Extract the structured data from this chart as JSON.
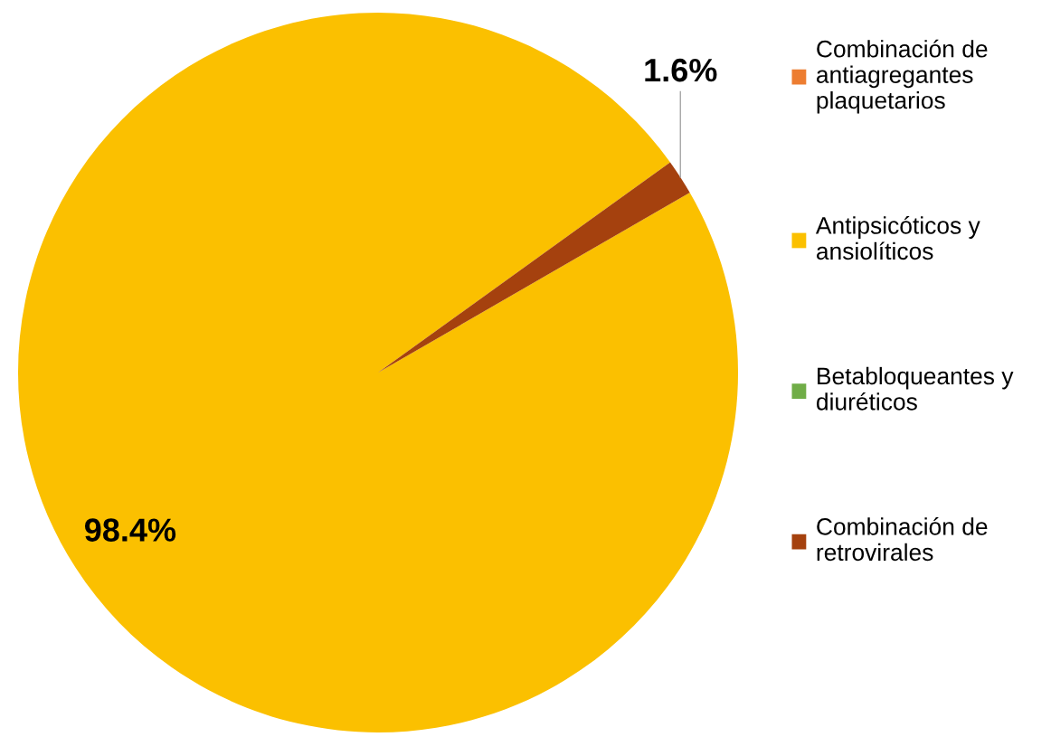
{
  "chart_data": {
    "type": "pie",
    "categories": [
      "Combinación de\nantiagregantes\nplaquetarios",
      "Antipsicóticos y\nansiolíticos",
      "Betabloqueantes y\ndiuréticos",
      "Combinación de\nretrovirales"
    ],
    "values": [
      0,
      98.4,
      0,
      1.6
    ],
    "colors": [
      "#ed7d31",
      "#fbc000",
      "#70ad47",
      "#a5410e"
    ],
    "value_labels": [
      null,
      "98.4%",
      null,
      "1.6%"
    ],
    "legend": "right"
  }
}
